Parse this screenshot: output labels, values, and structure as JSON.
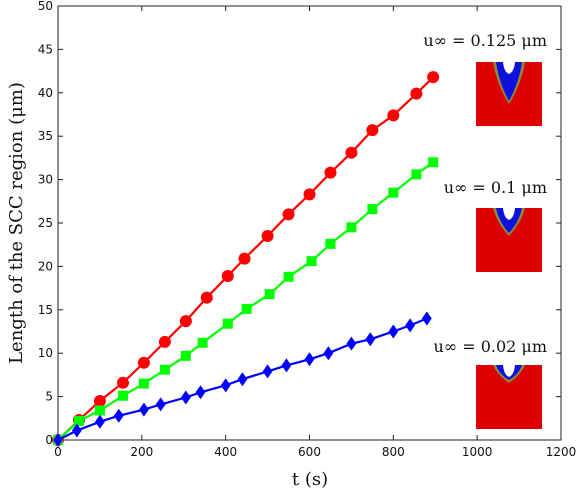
{
  "chart_data": {
    "type": "line",
    "xlabel": "t (s)",
    "ylabel": "Length of the SCC region (μm)",
    "xlim": [
      0,
      1200
    ],
    "ylim": [
      0,
      50
    ],
    "x_ticks": [
      "0",
      "200",
      "400",
      "600",
      "800",
      "1000",
      "1200"
    ],
    "y_ticks": [
      "0",
      "5",
      "10",
      "15",
      "20",
      "25",
      "30",
      "35",
      "40",
      "45",
      "50"
    ],
    "grid": false,
    "series": [
      {
        "name": "u∞ = 0.125 μm",
        "color": "#ff0000",
        "marker": "circle",
        "points": [
          [
            0,
            0
          ],
          [
            50,
            2.3
          ],
          [
            100,
            4.5
          ],
          [
            155,
            6.6
          ],
          [
            205,
            8.9
          ],
          [
            255,
            11.3
          ],
          [
            305,
            13.7
          ],
          [
            355,
            16.4
          ],
          [
            405,
            18.9
          ],
          [
            445,
            20.9
          ],
          [
            500,
            23.5
          ],
          [
            550,
            26.0
          ],
          [
            600,
            28.3
          ],
          [
            650,
            30.8
          ],
          [
            700,
            33.1
          ],
          [
            750,
            35.7
          ],
          [
            800,
            37.4
          ],
          [
            855,
            39.9
          ],
          [
            895,
            41.8
          ]
        ]
      },
      {
        "name": "u∞ = 0.1 μm",
        "color": "#00ff00",
        "marker": "square",
        "points": [
          [
            0,
            0
          ],
          [
            50,
            2.2
          ],
          [
            100,
            3.4
          ],
          [
            155,
            5.1
          ],
          [
            205,
            6.5
          ],
          [
            255,
            8.1
          ],
          [
            305,
            9.7
          ],
          [
            345,
            11.2
          ],
          [
            405,
            13.4
          ],
          [
            450,
            15.1
          ],
          [
            505,
            16.8
          ],
          [
            550,
            18.8
          ],
          [
            605,
            20.6
          ],
          [
            650,
            22.6
          ],
          [
            700,
            24.5
          ],
          [
            750,
            26.6
          ],
          [
            800,
            28.5
          ],
          [
            855,
            30.6
          ],
          [
            895,
            32.0
          ]
        ]
      },
      {
        "name": "u∞ = 0.02 μm",
        "color": "#0000ff",
        "marker": "diamond",
        "points": [
          [
            0,
            0
          ],
          [
            45,
            1.1
          ],
          [
            100,
            2.1
          ],
          [
            145,
            2.8
          ],
          [
            205,
            3.5
          ],
          [
            245,
            4.1
          ],
          [
            305,
            4.9
          ],
          [
            340,
            5.5
          ],
          [
            400,
            6.3
          ],
          [
            440,
            7.0
          ],
          [
            500,
            7.9
          ],
          [
            545,
            8.6
          ],
          [
            600,
            9.3
          ],
          [
            645,
            10.0
          ],
          [
            700,
            11.1
          ],
          [
            745,
            11.6
          ],
          [
            800,
            12.5
          ],
          [
            840,
            13.2
          ],
          [
            880,
            14.0
          ]
        ]
      }
    ],
    "annotations": [
      "u∞ = 0.125 μm",
      "u∞ = 0.1 μm",
      "u∞ = 0.02 μm"
    ]
  }
}
